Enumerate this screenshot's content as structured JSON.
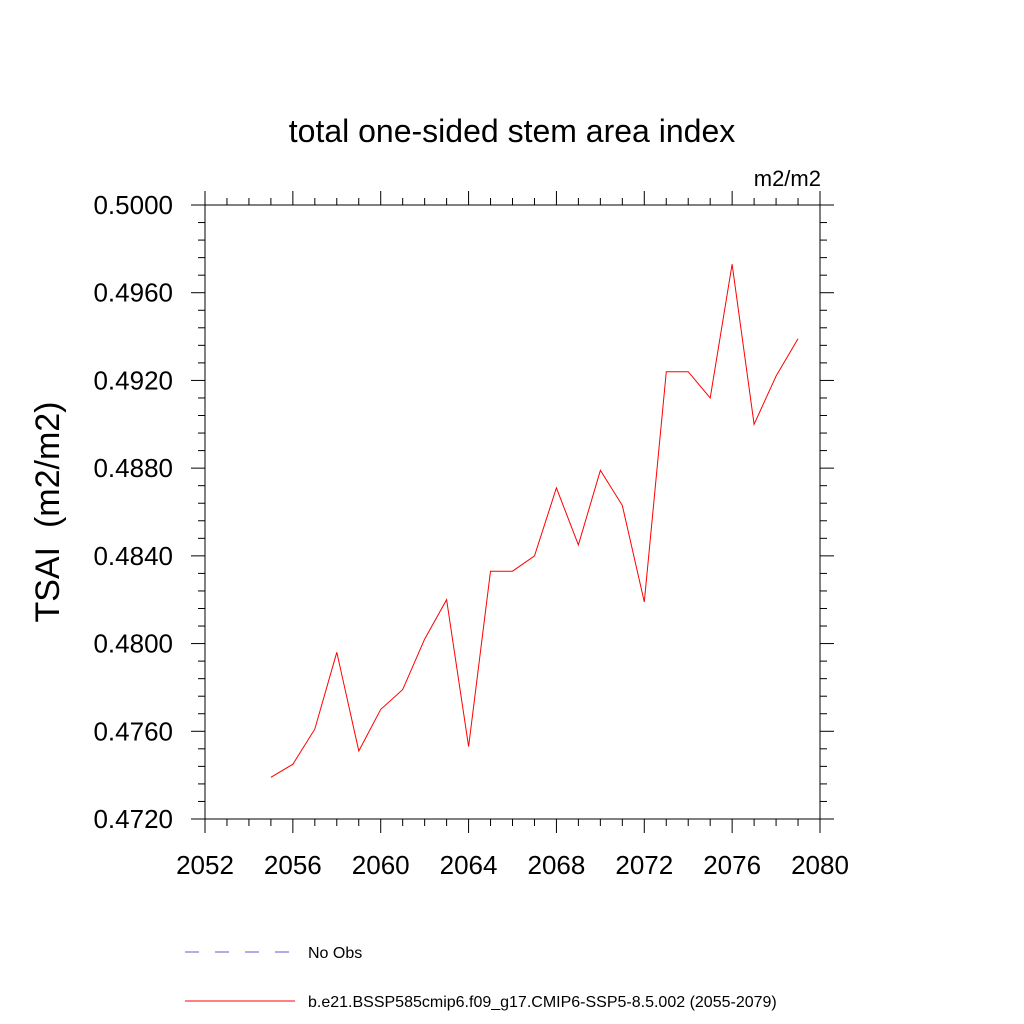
{
  "chart_data": {
    "type": "line",
    "title": "total one-sided stem area index",
    "units": "m2/m2",
    "ylabel": "TSAI  (m2/m2)",
    "xlabel": "",
    "xlim": [
      2052,
      2080
    ],
    "ylim": [
      0.472,
      0.5
    ],
    "x_ticks": [
      2052,
      2056,
      2060,
      2064,
      2068,
      2072,
      2076,
      2080
    ],
    "x_tick_labels": [
      "2052",
      "2056",
      "2060",
      "2064",
      "2068",
      "2072",
      "2076",
      "2080"
    ],
    "y_ticks": [
      0.472,
      0.476,
      0.48,
      0.484,
      0.488,
      0.492,
      0.496,
      0.5
    ],
    "y_tick_labels": [
      "0.4720",
      "0.4760",
      "0.4800",
      "0.4840",
      "0.4880",
      "0.4920",
      "0.4960",
      "0.5000"
    ],
    "grid": false,
    "legend_position": "bottom",
    "series": [
      {
        "name": "b.e21.BSSP585cmip6.f09_g17.CMIP6-SSP5-8.5.002 (2055-2079)",
        "color": "#ff0000",
        "dash": "solid",
        "x": [
          2055,
          2056,
          2057,
          2058,
          2059,
          2060,
          2061,
          2062,
          2063,
          2064,
          2065,
          2066,
          2067,
          2068,
          2069,
          2070,
          2071,
          2072,
          2073,
          2074,
          2075,
          2076,
          2077,
          2078,
          2079
        ],
        "y": [
          0.4739,
          0.4745,
          0.4761,
          0.4796,
          0.4751,
          0.477,
          0.4779,
          0.4802,
          0.482,
          0.4753,
          0.4833,
          0.4833,
          0.484,
          0.4871,
          0.4845,
          0.4879,
          0.4863,
          0.4819,
          0.4924,
          0.4924,
          0.4912,
          0.4973,
          0.49,
          0.4922,
          0.4939
        ]
      }
    ],
    "legend": [
      {
        "label": "No Obs",
        "color": "#6a5acd",
        "dash": "dashed"
      },
      {
        "label": "b.e21.BSSP585cmip6.f09_g17.CMIP6-SSP5-8.5.002 (2055-2079)",
        "color": "#ff0000",
        "dash": "solid"
      }
    ]
  }
}
